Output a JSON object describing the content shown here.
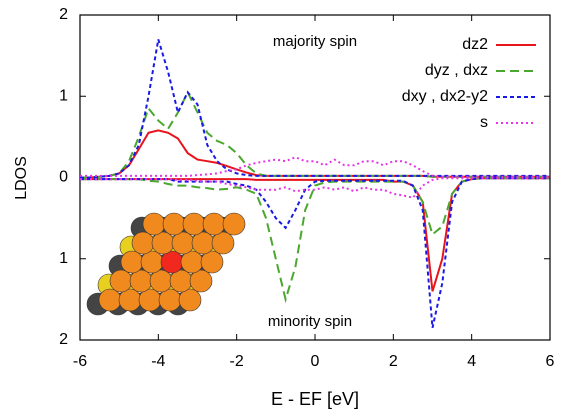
{
  "chart_data": {
    "type": "line",
    "y_label": "LDOS",
    "x_label": "E - EF [eV]",
    "annotations": [
      "majority spin",
      "minority spin"
    ],
    "xlim": [
      -6,
      6
    ],
    "xticks": [
      -6,
      -4,
      -2,
      0,
      2,
      4,
      6
    ],
    "ylim": [
      -2,
      2
    ],
    "yticks": [
      {
        "value": -2,
        "label": "2"
      },
      {
        "value": -1,
        "label": "1"
      },
      0,
      1,
      2
    ],
    "legend": "upper right",
    "x": [
      -6,
      -5.75,
      -5.5,
      -5.25,
      -5,
      -4.75,
      -4.5,
      -4.25,
      -4,
      -3.75,
      -3.5,
      -3.25,
      -3,
      -2.75,
      -2.5,
      -2.25,
      -2,
      -1.75,
      -1.5,
      -1.25,
      -1,
      -0.75,
      -0.5,
      -0.25,
      0,
      0.25,
      0.5,
      0.75,
      1,
      1.25,
      1.5,
      1.75,
      2,
      2.25,
      2.5,
      2.75,
      3,
      3.25,
      3.5,
      3.75,
      4,
      4.25,
      4.5,
      4.75,
      5,
      5.25,
      5.5,
      5.75,
      6
    ],
    "series": [
      {
        "name": "dz2",
        "color": "#e8141c",
        "dash": "none",
        "values": [
          0,
          0,
          0.01,
          0.02,
          0.05,
          0.15,
          0.35,
          0.55,
          0.58,
          0.55,
          0.48,
          0.3,
          0.22,
          0.2,
          0.18,
          0.14,
          0.1,
          0.06,
          0.03,
          0.02,
          0.02,
          0.02,
          0.02,
          0.02,
          0.02,
          0.02,
          0.02,
          0.02,
          0.02,
          0.02,
          0.02,
          0.02,
          0.02,
          0.02,
          0.02,
          0.02,
          0.01,
          0.01,
          0.01,
          0.01,
          0.01,
          0.01,
          0.01,
          0.01,
          0.01,
          0.01,
          0.01,
          0.01,
          0.01
        ],
        "minority_values": [
          -0.02,
          -0.02,
          -0.02,
          -0.02,
          -0.02,
          -0.02,
          -0.02,
          -0.02,
          -0.02,
          -0.02,
          -0.02,
          -0.02,
          -0.02,
          -0.02,
          -0.02,
          -0.02,
          -0.02,
          -0.02,
          -0.03,
          -0.03,
          -0.03,
          -0.03,
          -0.03,
          -0.03,
          -0.03,
          -0.03,
          -0.03,
          -0.03,
          -0.03,
          -0.03,
          -0.03,
          -0.03,
          -0.05,
          -0.05,
          -0.1,
          -0.3,
          -1.4,
          -1.0,
          -0.2,
          -0.05,
          -0.02,
          -0.01,
          -0.01,
          -0.01,
          -0.01,
          -0.01,
          -0.01,
          -0.01,
          -0.01
        ]
      },
      {
        "name": "dyz , dxz",
        "color": "#4aa82e",
        "dash": "9,5",
        "values": [
          0,
          0,
          0.01,
          0.02,
          0.05,
          0.2,
          0.5,
          0.85,
          0.7,
          0.6,
          0.8,
          1.05,
          0.8,
          0.55,
          0.45,
          0.4,
          0.3,
          0.15,
          0.05,
          0.02,
          0.02,
          0.02,
          0.02,
          0.02,
          0.02,
          0.02,
          0.02,
          0.02,
          0.02,
          0.02,
          0.02,
          0.02,
          0.02,
          0.02,
          0.02,
          0.02,
          0.01,
          0.01,
          0.01,
          0.01,
          0.01,
          0.01,
          0.01,
          0.01,
          0.01,
          0.01,
          0.01,
          0.01,
          0.01
        ],
        "minority_values": [
          -0.02,
          -0.02,
          -0.02,
          -0.02,
          -0.02,
          -0.02,
          -0.02,
          -0.04,
          -0.05,
          -0.08,
          -0.1,
          -0.1,
          -0.12,
          -0.13,
          -0.15,
          -0.14,
          -0.12,
          -0.15,
          -0.2,
          -0.5,
          -1.0,
          -1.5,
          -1.1,
          -0.4,
          -0.1,
          -0.06,
          -0.05,
          -0.05,
          -0.05,
          -0.05,
          -0.05,
          -0.05,
          -0.05,
          -0.05,
          -0.1,
          -0.3,
          -0.7,
          -0.6,
          -0.2,
          -0.05,
          -0.02,
          -0.01,
          -0.01,
          -0.01,
          -0.01,
          -0.01,
          -0.01,
          -0.01,
          -0.01
        ]
      },
      {
        "name": "dxy , dx2-y2",
        "color": "#1a1ae6",
        "dash": "4,3",
        "values": [
          0,
          0,
          0.01,
          0.02,
          0.05,
          0.15,
          0.4,
          1.0,
          1.7,
          1.3,
          0.8,
          1.05,
          0.9,
          0.4,
          0.2,
          0.1,
          0.05,
          0.03,
          0.02,
          0.02,
          0.02,
          0.02,
          0.02,
          0.02,
          0.02,
          0.02,
          0.02,
          0.02,
          0.02,
          0.02,
          0.02,
          0.02,
          0.02,
          0.02,
          0.02,
          0.02,
          0.02,
          0.02,
          0.02,
          0.02,
          0.02,
          0.02,
          0.02,
          0.02,
          0.02,
          0.02,
          0.02,
          0.02,
          0.02
        ],
        "minority_values": [
          -0.02,
          -0.02,
          -0.02,
          -0.02,
          -0.02,
          -0.02,
          -0.02,
          -0.02,
          -0.02,
          -0.02,
          -0.05,
          -0.05,
          -0.05,
          -0.05,
          -0.05,
          -0.05,
          -0.08,
          -0.1,
          -0.15,
          -0.3,
          -0.5,
          -0.62,
          -0.4,
          -0.15,
          -0.05,
          -0.04,
          -0.04,
          -0.04,
          -0.04,
          -0.04,
          -0.04,
          -0.04,
          -0.04,
          -0.04,
          -0.1,
          -0.4,
          -1.85,
          -1.3,
          -0.3,
          -0.05,
          -0.02,
          -0.01,
          -0.01,
          -0.01,
          -0.01,
          -0.01,
          -0.01,
          -0.01,
          -0.01
        ]
      },
      {
        "name": "s",
        "color": "#e633e6",
        "dash": "2,3",
        "values": [
          0.02,
          0.02,
          0.02,
          0.02,
          0.02,
          0.02,
          0.02,
          0.02,
          0.02,
          0.02,
          0.02,
          0.02,
          0.03,
          0.04,
          0.05,
          0.08,
          0.1,
          0.15,
          0.18,
          0.2,
          0.22,
          0.2,
          0.25,
          0.2,
          0.2,
          0.15,
          0.22,
          0.15,
          0.15,
          0.2,
          0.2,
          0.15,
          0.2,
          0.2,
          0.15,
          0.08,
          0.02,
          0.01,
          0.01,
          0.01,
          0.01,
          0.01,
          0.01,
          0.01,
          0.01,
          0.01,
          0.01,
          0.01,
          0.01
        ],
        "minority_values": [
          -0.02,
          -0.02,
          -0.02,
          -0.02,
          -0.02,
          -0.02,
          -0.02,
          -0.02,
          -0.02,
          -0.02,
          -0.03,
          -0.03,
          -0.04,
          -0.05,
          -0.05,
          -0.08,
          -0.1,
          -0.12,
          -0.15,
          -0.15,
          -0.15,
          -0.12,
          -0.17,
          -0.15,
          -0.15,
          -0.12,
          -0.15,
          -0.12,
          -0.17,
          -0.12,
          -0.15,
          -0.15,
          -0.2,
          -0.22,
          -0.25,
          -0.1,
          -0.03,
          -0.01,
          -0.01,
          -0.01,
          -0.01,
          -0.01,
          -0.01,
          -0.01,
          -0.01,
          -0.01,
          -0.01,
          -0.01,
          -0.01
        ]
      }
    ]
  }
}
